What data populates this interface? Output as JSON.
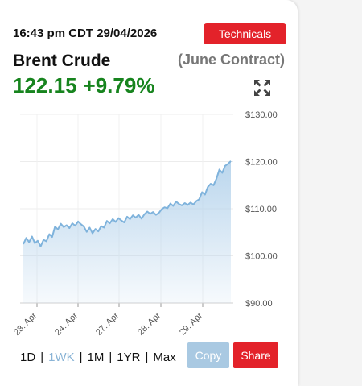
{
  "header": {
    "timestamp": "16:43 pm CDT 29/04/2026",
    "technicals_label": "Technicals"
  },
  "instrument": {
    "name": "Brent Crude",
    "contract": "(June Contract)",
    "price": "122.15",
    "change": "+9.79%"
  },
  "icons": {
    "expand": "expand-arrows-icon"
  },
  "colors": {
    "accent_red": "#e3222a",
    "price_green": "#17841e",
    "line_blue": "#7fb3dc",
    "fill_blue": "#b7d4ec",
    "copy_blue": "#a9c9e2",
    "inactive_period": "#8ab4d6"
  },
  "periods": [
    {
      "label": "1D",
      "active": false
    },
    {
      "label": "1WK",
      "active": true
    },
    {
      "label": "1M",
      "active": false
    },
    {
      "label": "1YR",
      "active": false
    },
    {
      "label": "Max",
      "active": false
    }
  ],
  "actions": {
    "copy_label": "Copy",
    "share_label": "Share"
  },
  "chart_data": {
    "type": "area",
    "title": "",
    "xlabel": "",
    "ylabel": "",
    "x_ticks": [
      "23. Apr",
      "24. Apr",
      "27. Apr",
      "28. Apr",
      "29. Apr"
    ],
    "y_ticks": [
      "$130.00",
      "$120.00",
      "$110.00",
      "$100.00",
      "$90.00"
    ],
    "y_tick_values": [
      130,
      120,
      110,
      100,
      90
    ],
    "ylim": [
      90,
      130
    ],
    "grid": true,
    "legend": "none",
    "series": [
      {
        "values": [
          102.5,
          103.8,
          102.9,
          104.1,
          102.7,
          103.2,
          102.0,
          103.4,
          103.1,
          104.6,
          104.0,
          106.2,
          105.6,
          106.8,
          106.1,
          106.5,
          105.9,
          106.9,
          106.4,
          107.3,
          106.7,
          106.2,
          105.1,
          106.0,
          104.8,
          105.7,
          105.2,
          106.3,
          106.0,
          107.4,
          106.9,
          107.8,
          107.2,
          108.0,
          107.5,
          107.1,
          108.3,
          107.8,
          108.6,
          108.1,
          108.7,
          107.9,
          108.8,
          109.4,
          108.9,
          109.3,
          108.7,
          109.1,
          109.9,
          110.3,
          110.1,
          111.1,
          110.6,
          111.5,
          111.0,
          110.7,
          111.2,
          110.8,
          111.3,
          110.9,
          111.6,
          112.0,
          113.5,
          113.0,
          114.6,
          115.3,
          115.0,
          116.4,
          118.3,
          117.6,
          119.1,
          119.5,
          120.1
        ]
      }
    ]
  }
}
